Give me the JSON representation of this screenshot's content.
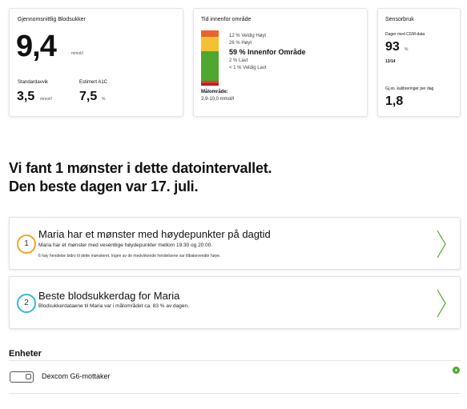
{
  "glucose_avg": {
    "title": "Gjennomsnittlig Blodsukker",
    "value": "9,4",
    "unit": "mmol/l",
    "sd_label": "Standardavvik",
    "sd_value": "3,5",
    "sd_unit": "mmol/l",
    "a1c_label": "Estimert A1C",
    "a1c_value": "7,5",
    "a1c_unit": "%"
  },
  "time_in_range": {
    "title": "Tid innenfor område",
    "bands": [
      {
        "label": "12 % Veldig Høyt",
        "percent": 12,
        "color": "#e8642c"
      },
      {
        "label": "26 % Høyt",
        "percent": 26,
        "color": "#f3c230"
      },
      {
        "label": "59 % Innenfor Område",
        "percent": 59,
        "color": "#4ea72e"
      },
      {
        "label": "2 % Lavt",
        "percent": 2,
        "color": "#e03c3c"
      },
      {
        "label": "< 1 % Veldig Lavt",
        "percent": 1,
        "color": "#b31d1d"
      }
    ],
    "target_label": "Målområde:",
    "target_value": "3,9-10,0 mmol/l"
  },
  "sensor": {
    "title": "Sensorbruk",
    "days_label": "Dager med CGM-data",
    "days_value": "93",
    "days_unit": "%",
    "days_fraction": "13/14",
    "calibration_label": "Gj.sn. kalibreringer per dag",
    "calibration_value": "1,8"
  },
  "heading_line1": "Vi fant 1 mønster i dette datointervallet.",
  "heading_line2": "Den beste dagen var 17. juli.",
  "patterns": [
    {
      "number": "1",
      "title": "Maria har et mønster med høydepunkter på dagtid",
      "description": "Maria har et mønster med vesentlige høydepunkter mellom 19:30 og 20:00.",
      "detail": "6 høy hendelse bidro til dette mønsteret. Ingen av de medvirkende hendelsene var tilbakevendte høye.",
      "ring_color": "#f2a12e"
    },
    {
      "number": "2",
      "title": "Beste blodsukkerdag for Maria",
      "description": "Blodsukkerdataene til Maria var i målområdet ca. 83 % av dagen.",
      "ring_color": "#33b5e5"
    }
  ],
  "devices": {
    "heading": "Enheter",
    "items": [
      {
        "name": "Dexcom G6-mottaker",
        "icon": "receiver-icon",
        "status_icon": "play-circle-icon",
        "status_color": "#4ea72e"
      }
    ]
  },
  "colors": {
    "chevron": "#4ea72e"
  }
}
